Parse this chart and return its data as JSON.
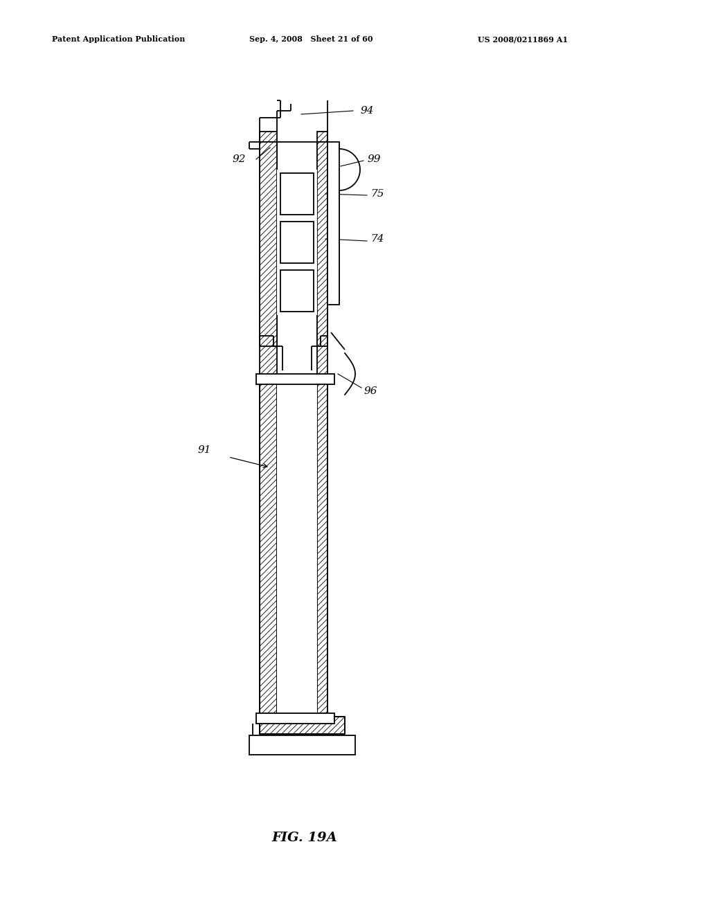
{
  "title": "FIG. 19A",
  "header_left": "Patent Application Publication",
  "header_mid": "Sep. 4, 2008   Sheet 21 of 60",
  "header_right": "US 2008/0211869 A1",
  "bg_color": "#ffffff",
  "line_color": "#000000",
  "lw": 1.3,
  "hatch_lw": 0.6
}
